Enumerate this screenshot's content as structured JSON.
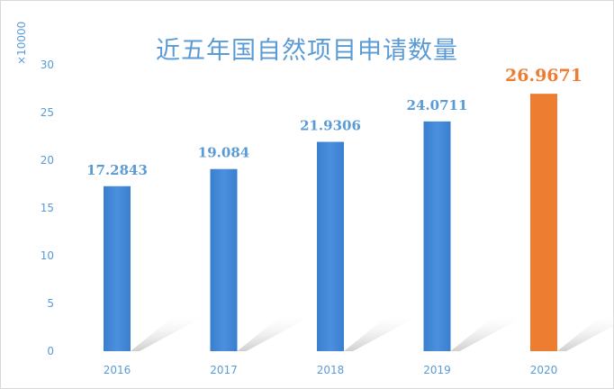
{
  "chart_data": {
    "type": "bar",
    "title": "近五年国自然项目申请数量",
    "unit_label": "×10000",
    "categories": [
      "2016",
      "2017",
      "2018",
      "2019",
      "2020"
    ],
    "values": [
      17.2843,
      19.084,
      21.9306,
      24.0711,
      26.9671
    ],
    "value_labels": [
      "17.2843",
      "19.084",
      "21.9306",
      "24.0711",
      "26.9671"
    ],
    "highlight_index": 4,
    "ylim": [
      0,
      30
    ],
    "yticks": [
      0,
      5,
      10,
      15,
      20,
      25,
      30
    ],
    "grid": false,
    "colors": {
      "bar": "#3d85d4",
      "highlight": "#ed7d31",
      "axis_text": "#5b9bd5",
      "title": "#5b9bd5"
    }
  }
}
